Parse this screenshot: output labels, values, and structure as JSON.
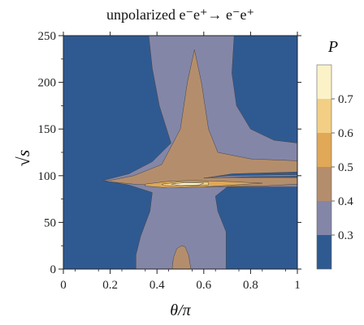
{
  "chart_data": {
    "type": "heatmap",
    "title": "unpolarized  e⁻e⁺→ e⁻e⁺",
    "xlabel": "θ/π",
    "ylabel": "√s",
    "xlim": [
      0,
      1
    ],
    "ylim": [
      0,
      250
    ],
    "x_ticks": [
      "0",
      "0.2",
      "0.4",
      "0.6",
      "0.8",
      "1"
    ],
    "y_ticks": [
      "0",
      "50",
      "100",
      "150",
      "200",
      "250"
    ],
    "legend": {
      "title": "P",
      "position": "right",
      "labels": [
        "0.3",
        "0.4",
        "0.5",
        "0.6",
        "0.7"
      ],
      "levels": [
        {
          "range": [
            0.2,
            0.3
          ],
          "color": "#2f5a91"
        },
        {
          "range": [
            0.3,
            0.4
          ],
          "color": "#8486a8"
        },
        {
          "range": [
            0.4,
            0.5
          ],
          "color": "#b48e6c"
        },
        {
          "range": [
            0.5,
            0.6
          ],
          "color": "#e0a857"
        },
        {
          "range": [
            0.6,
            0.7
          ],
          "color": "#f2cf85"
        },
        {
          "range": [
            0.7,
            0.8
          ],
          "color": "#fbf2c7"
        }
      ]
    },
    "regions": [
      {
        "level": "0.3–0.4",
        "description": "central band theta/pi ~0.3–0.7 for sqrt(s) below ~90, widening above ~100 to the right edge"
      },
      {
        "level": "0.4–0.5",
        "description": "spike peaking near theta/pi 0.55, sqrt(s) 235; wing near sqrt(s) 100 across to theta/pi 1"
      },
      {
        "level": "0.5–0.6",
        "description": "small lobe near theta/pi 0.5, sqrt(s) 0–25"
      },
      {
        "level": "0.6–0.8",
        "description": "narrow resonance near sqrt(s) 91, theta/pi 0.45–0.6"
      }
    ]
  }
}
